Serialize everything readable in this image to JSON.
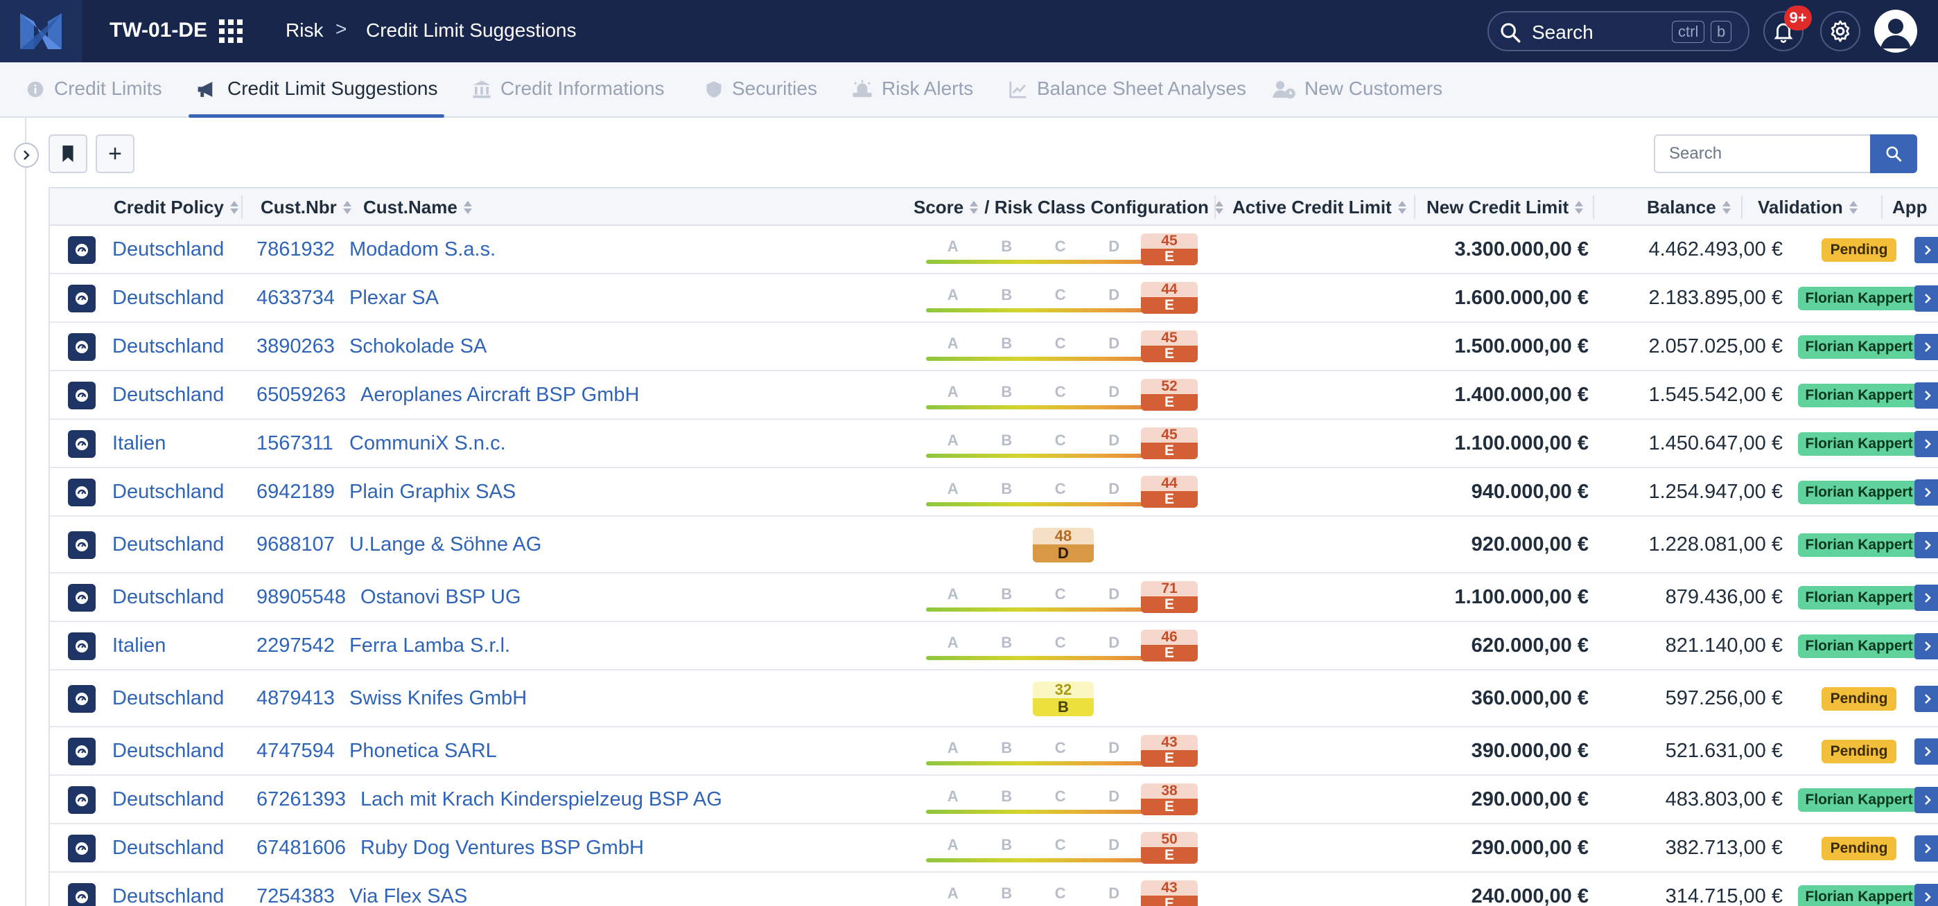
{
  "header": {
    "company": "TW-01-DE",
    "breadcrumb_root": "Risk",
    "breadcrumb_sep": ">",
    "breadcrumb_page": "Credit Limit Suggestions",
    "search_label": "Search",
    "search_shortcut_1": "ctrl",
    "search_shortcut_2": "b",
    "notification_badge": "9+"
  },
  "tabs": [
    {
      "label": "Credit Limits",
      "icon": "info-icon"
    },
    {
      "label": "Credit Limit Suggestions",
      "icon": "megaphone-icon",
      "active": true
    },
    {
      "label": "Credit Informations",
      "icon": "bank-icon"
    },
    {
      "label": "Securities",
      "icon": "shield-icon"
    },
    {
      "label": "Risk Alerts",
      "icon": "alert-icon"
    },
    {
      "label": "Balance Sheet Analyses",
      "icon": "chart-icon"
    },
    {
      "label": "New Customers",
      "icon": "user-clock-icon"
    }
  ],
  "toolbar": {
    "add_label": "+",
    "search_placeholder": "Search"
  },
  "columns": {
    "policy": "Credit Policy",
    "custnbr": "Cust.Nbr",
    "custname": "Cust.Name",
    "score": "Score",
    "riskclass": "/ Risk Class Configuration",
    "activelimit": "Active Credit Limit",
    "newlimit": "New Credit Limit",
    "balance": "Balance",
    "validation": "Validation",
    "approval": "App"
  },
  "score_letters": [
    "A",
    "B",
    "C",
    "D"
  ],
  "colors": {
    "navy": "#17264a",
    "accent": "#3a65b7",
    "pending": "#f3bf3a",
    "approved": "#5fd39b",
    "risk_e": "#d35f35"
  },
  "rows": [
    {
      "policy": "Deutschland",
      "nbr": "7861932",
      "name": "Modadom S.a.s.",
      "score": "45",
      "cls": "E",
      "kind": "bar",
      "newlimit": "3.300.000,00 €",
      "balance": "4.462.493,00 €",
      "validation": "Pending",
      "vkind": "pending"
    },
    {
      "policy": "Deutschland",
      "nbr": "4633734",
      "name": "Plexar SA",
      "score": "44",
      "cls": "E",
      "kind": "bar",
      "newlimit": "1.600.000,00 €",
      "balance": "2.183.895,00 €",
      "validation": "Florian Kappert",
      "vkind": "approved"
    },
    {
      "policy": "Deutschland",
      "nbr": "3890263",
      "name": "Schokolade SA",
      "score": "45",
      "cls": "E",
      "kind": "bar",
      "newlimit": "1.500.000,00 €",
      "balance": "2.057.025,00 €",
      "validation": "Florian Kappert",
      "vkind": "approved"
    },
    {
      "policy": "Deutschland",
      "nbr": "65059263",
      "name": "Aeroplanes Aircraft BSP GmbH",
      "score": "52",
      "cls": "E",
      "kind": "bar",
      "newlimit": "1.400.000,00 €",
      "balance": "1.545.542,00 €",
      "validation": "Florian Kappert",
      "vkind": "approved"
    },
    {
      "policy": "Italien",
      "nbr": "1567311",
      "name": "CommuniX S.n.c.",
      "score": "45",
      "cls": "E",
      "kind": "bar",
      "newlimit": "1.100.000,00 €",
      "balance": "1.450.647,00 €",
      "validation": "Florian Kappert",
      "vkind": "approved"
    },
    {
      "policy": "Deutschland",
      "nbr": "6942189",
      "name": "Plain Graphix SAS",
      "score": "44",
      "cls": "E",
      "kind": "bar",
      "newlimit": "940.000,00 €",
      "balance": "1.254.947,00 €",
      "validation": "Florian Kappert",
      "vkind": "approved"
    },
    {
      "policy": "Deutschland",
      "nbr": "9688107",
      "name": "U.Lange & Söhne AG",
      "score": "48",
      "cls": "D",
      "kind": "chip-d",
      "newlimit": "920.000,00 €",
      "balance": "1.228.081,00 €",
      "validation": "Florian Kappert",
      "vkind": "approved"
    },
    {
      "policy": "Deutschland",
      "nbr": "98905548",
      "name": "Ostanovi BSP UG",
      "score": "71",
      "cls": "E",
      "kind": "bar",
      "newlimit": "1.100.000,00 €",
      "balance": "879.436,00 €",
      "validation": "Florian Kappert",
      "vkind": "approved"
    },
    {
      "policy": "Italien",
      "nbr": "2297542",
      "name": "Ferra Lamba S.r.l.",
      "score": "46",
      "cls": "E",
      "kind": "bar",
      "newlimit": "620.000,00 €",
      "balance": "821.140,00 €",
      "validation": "Florian Kappert",
      "vkind": "approved"
    },
    {
      "policy": "Deutschland",
      "nbr": "4879413",
      "name": "Swiss Knifes GmbH",
      "score": "32",
      "cls": "B",
      "kind": "chip-b",
      "newlimit": "360.000,00 €",
      "balance": "597.256,00 €",
      "validation": "Pending",
      "vkind": "pending"
    },
    {
      "policy": "Deutschland",
      "nbr": "4747594",
      "name": "Phonetica SARL",
      "score": "43",
      "cls": "E",
      "kind": "bar",
      "newlimit": "390.000,00 €",
      "balance": "521.631,00 €",
      "validation": "Pending",
      "vkind": "pending"
    },
    {
      "policy": "Deutschland",
      "nbr": "67261393",
      "name": "Lach mit Krach Kinderspielzeug BSP AG",
      "score": "38",
      "cls": "E",
      "kind": "bar",
      "newlimit": "290.000,00 €",
      "balance": "483.803,00 €",
      "validation": "Florian Kappert",
      "vkind": "approved"
    },
    {
      "policy": "Deutschland",
      "nbr": "67481606",
      "name": "Ruby Dog Ventures BSP GmbH",
      "score": "50",
      "cls": "E",
      "kind": "bar",
      "newlimit": "290.000,00 €",
      "balance": "382.713,00 €",
      "validation": "Pending",
      "vkind": "pending"
    },
    {
      "policy": "Deutschland",
      "nbr": "7254383",
      "name": "Via Flex SAS",
      "score": "43",
      "cls": "E",
      "kind": "bar",
      "newlimit": "240.000,00 €",
      "balance": "314.715,00 €",
      "validation": "Florian Kappert",
      "vkind": "approved"
    }
  ]
}
